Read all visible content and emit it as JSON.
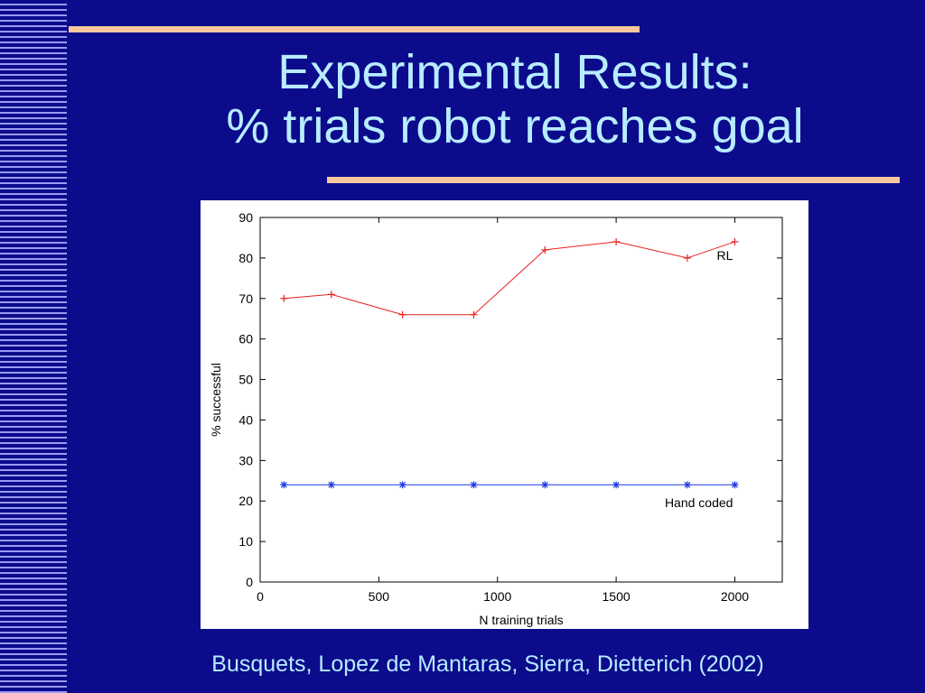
{
  "slide": {
    "title_line1": "Experimental Results:",
    "title_line2": "% trials robot reaches goal",
    "citation": "Busquets, Lopez de Mantaras, Sierra, Dietterich (2002)"
  },
  "colors": {
    "background": "#0b0b8c",
    "title_text": "#b8ecff",
    "accent_rule": "#f7c8a0",
    "stripes": "#9a9af0",
    "rl_series": "#e8211e",
    "hand_coded_series": "#1f3ae0"
  },
  "chart_data": {
    "type": "line",
    "xlabel": "N training trials",
    "ylabel": "% successful",
    "xlim": [
      0,
      2200
    ],
    "ylim": [
      0,
      90
    ],
    "xticks": [
      0,
      500,
      1000,
      1500,
      2000
    ],
    "yticks": [
      0,
      10,
      20,
      30,
      40,
      50,
      60,
      70,
      80,
      90
    ],
    "grid": false,
    "legend": "inline labels near series ends",
    "series": [
      {
        "name": "RL",
        "marker": "+",
        "color": "#e8211e",
        "x": [
          100,
          300,
          600,
          900,
          1200,
          1500,
          1800,
          2000
        ],
        "y": [
          70,
          71,
          66,
          66,
          82,
          84,
          80,
          84
        ]
      },
      {
        "name": "Hand coded",
        "marker": "*",
        "color": "#1f3ae0",
        "x": [
          100,
          300,
          600,
          900,
          1200,
          1500,
          1800,
          2000
        ],
        "y": [
          24,
          24,
          24,
          24,
          24,
          24,
          24,
          24
        ]
      }
    ]
  }
}
